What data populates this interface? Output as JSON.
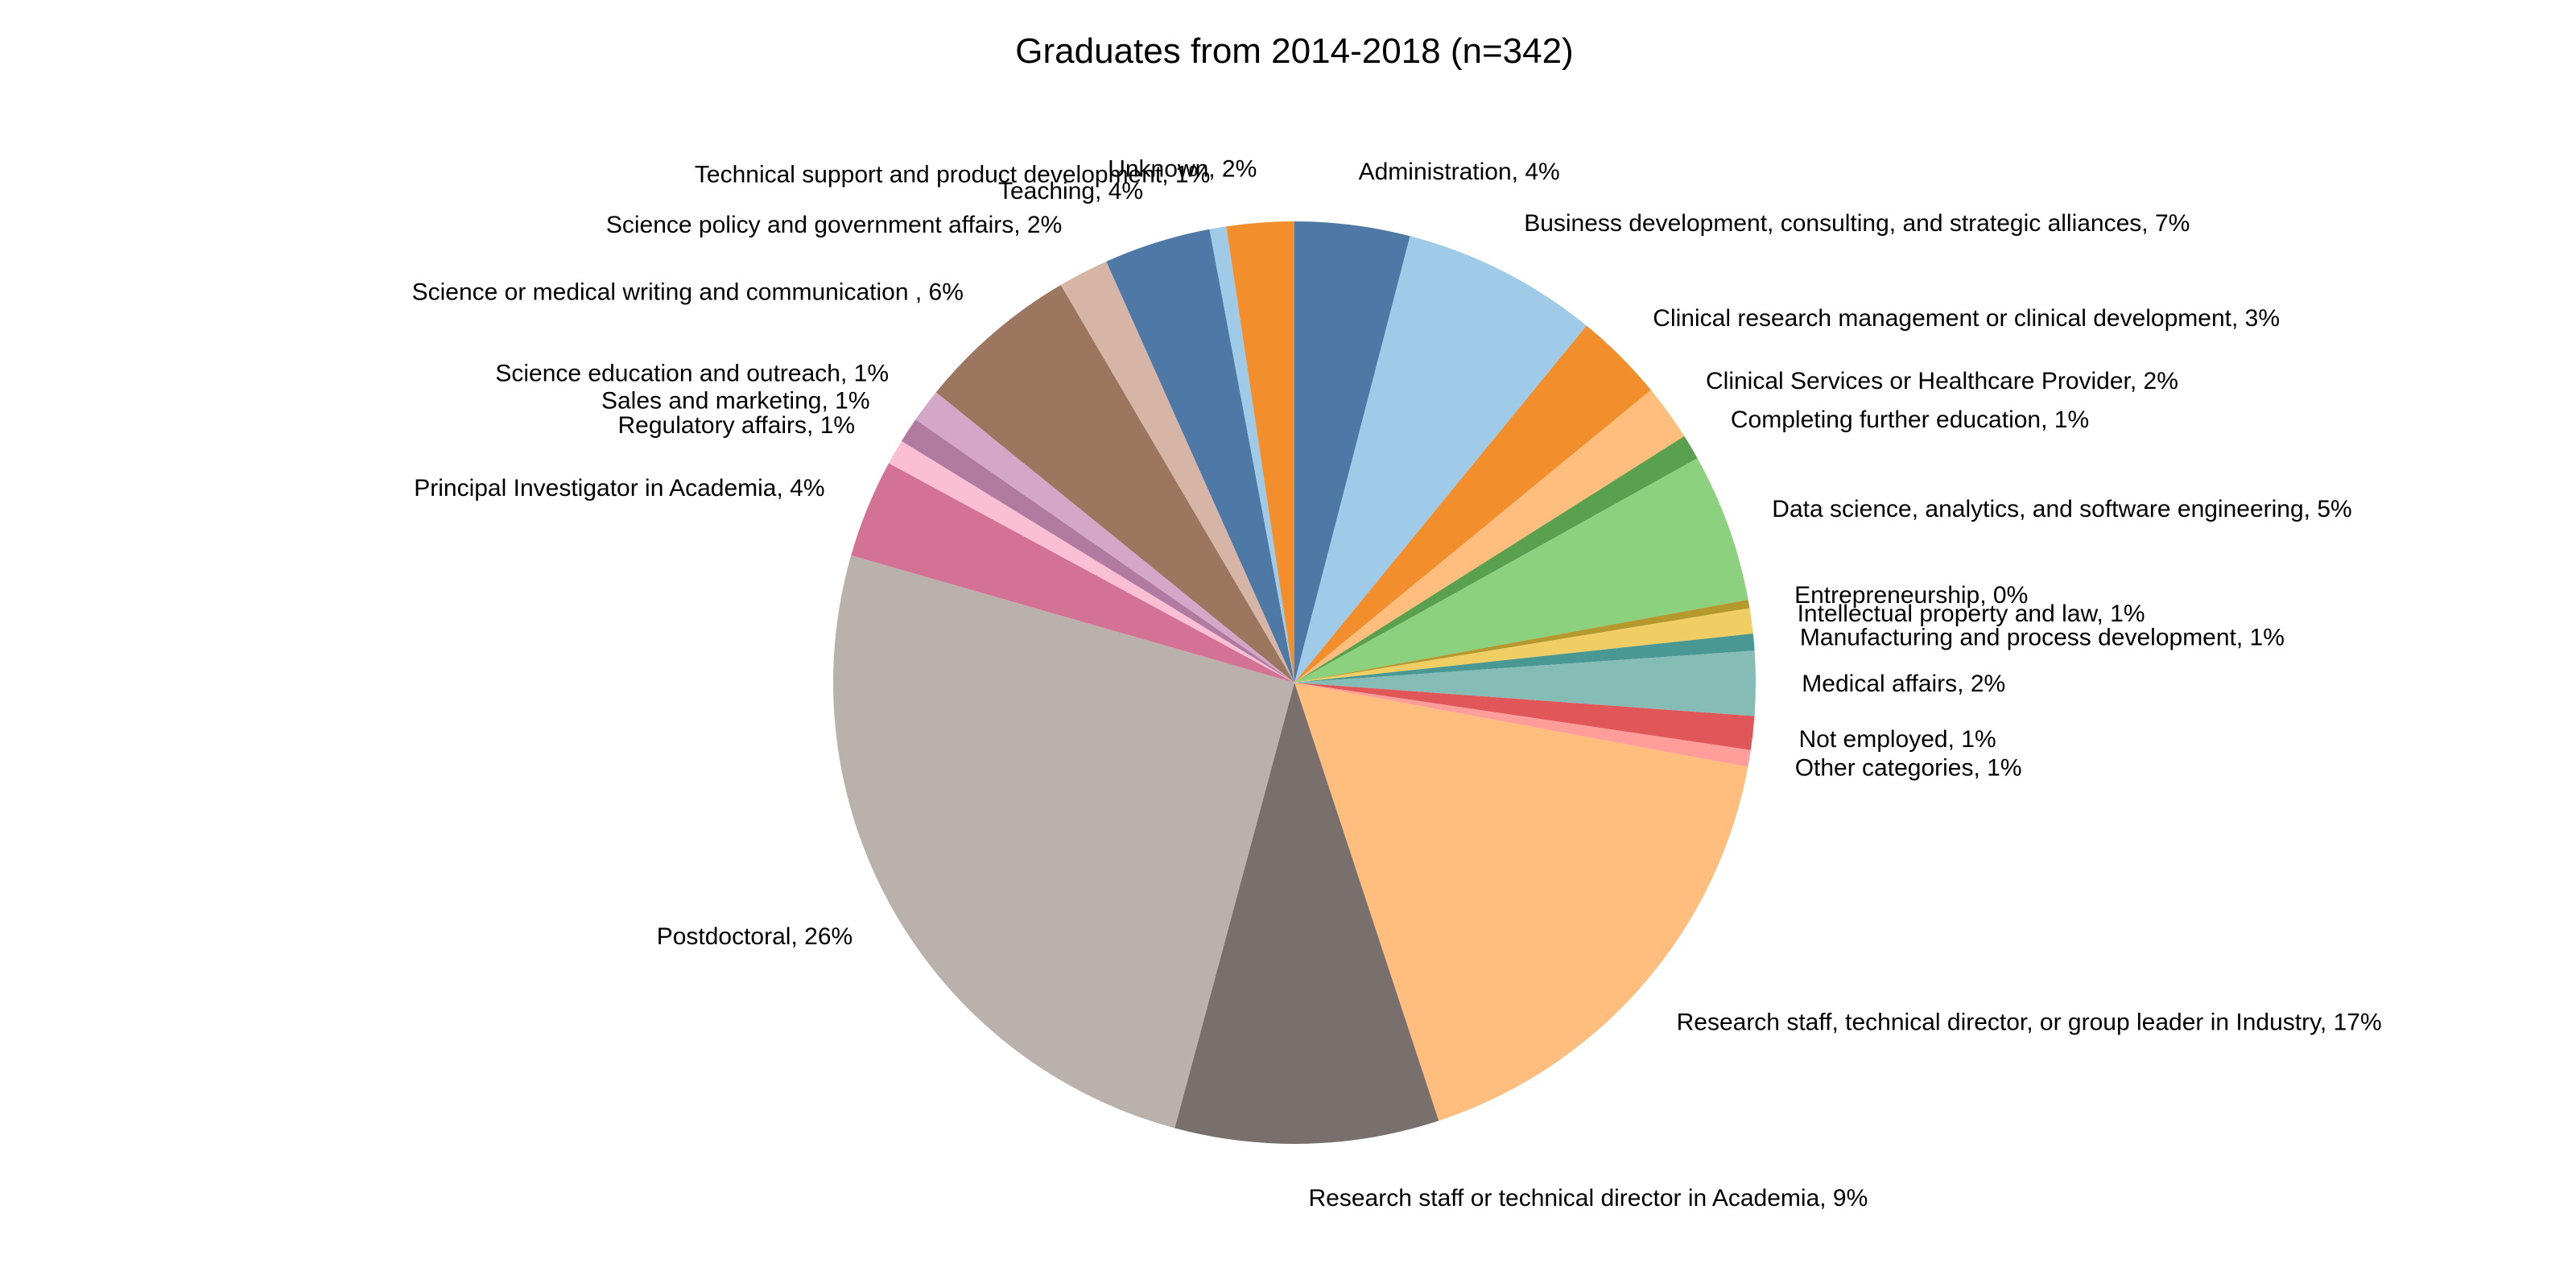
{
  "chart_data": {
    "type": "pie",
    "title": "Graduates from 2014-2018 (n=342)",
    "start_angle_deg": 90,
    "direction": "clockwise",
    "slices": [
      {
        "label": "Administration, 4%",
        "value": 4.1,
        "color": "#4e79a7"
      },
      {
        "label": "Business development, consulting, and strategic alliances, 7%",
        "value": 7.0,
        "color": "#a0cbe8"
      },
      {
        "label": "Clinical research management or clinical development, 3%",
        "value": 3.2,
        "color": "#f28e2b"
      },
      {
        "label": "Clinical Services or Healthcare Provider, 2%",
        "value": 2.0,
        "color": "#ffbe7d"
      },
      {
        "label": "Completing further education, 1%",
        "value": 0.9,
        "color": "#59a14f"
      },
      {
        "label": "Data science, analytics, and software engineering, 5%",
        "value": 5.3,
        "color": "#8cd17d"
      },
      {
        "label": "Entrepreneurship, 0%",
        "value": 0.3,
        "color": "#b6992d"
      },
      {
        "label": "Intellectual property and law, 1%",
        "value": 0.9,
        "color": "#f1ce63"
      },
      {
        "label": "Manufacturing and process development, 1%",
        "value": 0.6,
        "color": "#499894"
      },
      {
        "label": "Medical affairs, 2%",
        "value": 2.3,
        "color": "#86bcb6"
      },
      {
        "label": "Not employed, 1%",
        "value": 1.2,
        "color": "#e15759"
      },
      {
        "label": "Other categories, 1%",
        "value": 0.6,
        "color": "#ff9d9a"
      },
      {
        "label": "Research staff, technical director, or group leader in Industry, 17%",
        "value": 17.3,
        "color": "#ffbe7d"
      },
      {
        "label": "Research staff or technical director in Academia, 9%",
        "value": 9.4,
        "color": "#79706e"
      },
      {
        "label": "Postdoctoral, 26%",
        "value": 25.7,
        "color": "#bab0ac"
      },
      {
        "label": "Principal Investigator in Academia, 4%",
        "value": 3.5,
        "color": "#d37295"
      },
      {
        "label": "Regulatory affairs, 1%",
        "value": 0.9,
        "color": "#fabfd2"
      },
      {
        "label": "Sales and marketing, 1%",
        "value": 0.9,
        "color": "#b07aa1"
      },
      {
        "label": "Science education and outreach, 1%",
        "value": 1.2,
        "color": "#d4a6c8"
      },
      {
        "label": "Science or medical writing and communication , 6%",
        "value": 5.8,
        "color": "#9d7660"
      },
      {
        "label": "Science policy and government affairs, 2%",
        "value": 1.8,
        "color": "#d7b5a6"
      },
      {
        "label": "Teaching, 4%",
        "value": 3.8,
        "color": "#4e79a7"
      },
      {
        "label": "Technical support and product development, 1%",
        "value": 0.6,
        "color": "#a0cbe8"
      },
      {
        "label": "Unknown, 2%",
        "value": 2.4,
        "color": "#f28e2b"
      }
    ]
  }
}
